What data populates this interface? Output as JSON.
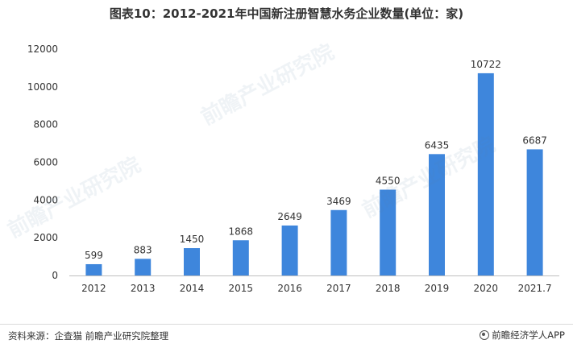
{
  "title": "图表10：2012-2021年中国新注册智慧水务企业数量(单位：家)",
  "source": "资料来源：企查猫 前瞻产业研究院整理",
  "brand": "前瞻经济学人APP",
  "watermark": "前瞻产业研究院",
  "colors": {
    "bar": "#3E86DC",
    "axis": "#bfbfbf",
    "text": "#333333"
  },
  "chart_data": {
    "type": "bar",
    "title": "图表10：2012-2021年中国新注册智慧水务企业数量(单位：家)",
    "categories": [
      "2012",
      "2013",
      "2014",
      "2015",
      "2016",
      "2017",
      "2018",
      "2019",
      "2020",
      "2021.7"
    ],
    "values": [
      599,
      883,
      1450,
      1868,
      2649,
      3469,
      4550,
      6435,
      10722,
      6687
    ],
    "ylim": [
      0,
      12000
    ],
    "yticks": [
      0,
      2000,
      4000,
      6000,
      8000,
      10000,
      12000
    ],
    "xlabel": "",
    "ylabel": "",
    "grid": false,
    "legend": "none"
  }
}
